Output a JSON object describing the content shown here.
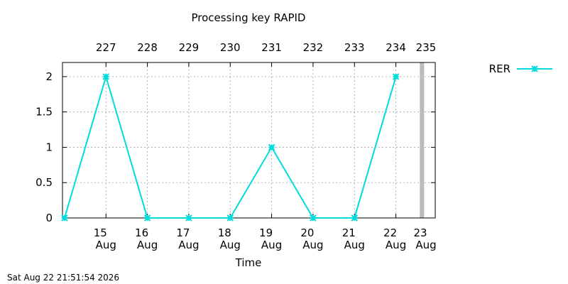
{
  "chart_data": {
    "type": "line",
    "title": "Processing key RAPID",
    "xlabel": "Time",
    "ylabel": "",
    "footer_timestamp": "Sat Aug 22 21:51:54 2026",
    "xlim": [
      14.25,
      23.25
    ],
    "ylim": [
      0,
      2.2
    ],
    "yticks": [
      {
        "value": 0,
        "label": "0"
      },
      {
        "value": 0.5,
        "label": "0.5"
      },
      {
        "value": 1,
        "label": "1"
      },
      {
        "value": 1.5,
        "label": "1.5"
      },
      {
        "value": 2,
        "label": "2"
      }
    ],
    "xticks_bottom": [
      {
        "value": 15.3,
        "day": "15",
        "month": "Aug"
      },
      {
        "value": 16.3,
        "day": "16",
        "month": "Aug"
      },
      {
        "value": 17.3,
        "day": "17",
        "month": "Aug"
      },
      {
        "value": 18.3,
        "day": "18",
        "month": "Aug"
      },
      {
        "value": 19.3,
        "day": "19",
        "month": "Aug"
      },
      {
        "value": 20.3,
        "day": "20",
        "month": "Aug"
      },
      {
        "value": 21.3,
        "day": "21",
        "month": "Aug"
      },
      {
        "value": 22.3,
        "day": "22",
        "month": "Aug"
      },
      {
        "value": 23.3,
        "day": "23",
        "month": "Aug"
      }
    ],
    "xticks_top": [
      {
        "value": 15.3,
        "label": "227"
      },
      {
        "value": 16.3,
        "label": "228"
      },
      {
        "value": 17.3,
        "label": "229"
      },
      {
        "value": 18.3,
        "label": "230"
      },
      {
        "value": 19.3,
        "label": "231"
      },
      {
        "value": 20.3,
        "label": "232"
      },
      {
        "value": 21.3,
        "label": "233"
      },
      {
        "value": 22.3,
        "label": "234"
      },
      {
        "value": 23.3,
        "label": "235"
      }
    ],
    "current_time_marker": 22.93,
    "grid": true,
    "legend": "top-right",
    "series": [
      {
        "name": "RER",
        "color": "#00dcdc",
        "marker": "star",
        "points": [
          {
            "x": 14.3,
            "y": 0
          },
          {
            "x": 15.3,
            "y": 2
          },
          {
            "x": 16.3,
            "y": 0
          },
          {
            "x": 17.3,
            "y": 0
          },
          {
            "x": 18.3,
            "y": 0
          },
          {
            "x": 19.3,
            "y": 1
          },
          {
            "x": 20.3,
            "y": 0
          },
          {
            "x": 21.3,
            "y": 0
          },
          {
            "x": 22.3,
            "y": 2
          }
        ]
      }
    ]
  }
}
